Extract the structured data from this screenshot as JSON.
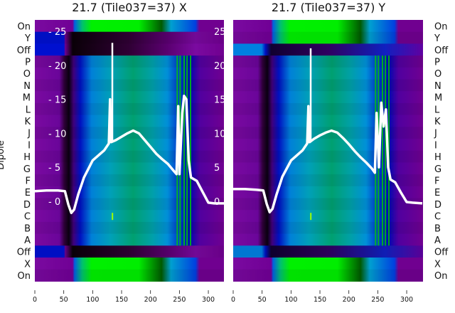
{
  "chart_data": {
    "type": "heatmap",
    "ylabel": "Dipole",
    "row_labels": [
      "On",
      "Y",
      "Off",
      "P",
      "O",
      "N",
      "M",
      "L",
      "K",
      "J",
      "I",
      "H",
      "G",
      "F",
      "E",
      "D",
      "C",
      "B",
      "A",
      "Off",
      "X",
      "On"
    ],
    "xlim": [
      0,
      327
    ],
    "x_ticks": [
      "0",
      "50",
      "100",
      "150",
      "200",
      "250",
      "300"
    ],
    "inner_y_ticks": [
      "0",
      "5",
      "10",
      "15",
      "20",
      "25"
    ],
    "inner_ylim": [
      -2.5,
      25.5
    ],
    "panels": [
      {
        "title": "21.7 (Tile037=37) X",
        "pol": "X",
        "curve": {
          "x": [
            0,
            20,
            40,
            52,
            58,
            63,
            68,
            75,
            85,
            100,
            120,
            128,
            130,
            132,
            140,
            150,
            160,
            170,
            180,
            190,
            200,
            210,
            220,
            230,
            240,
            245,
            248,
            250,
            255,
            258,
            262,
            266,
            270,
            280,
            290,
            300,
            310,
            327
          ],
          "y": [
            1.5,
            1.6,
            1.6,
            1.5,
            -0.5,
            -1.7,
            -1.2,
            1,
            3.5,
            6,
            7.5,
            8.5,
            15,
            8.7,
            9,
            9.5,
            10,
            10.4,
            10,
            9,
            8,
            7,
            6.2,
            5.5,
            4.5,
            4,
            14,
            4,
            13,
            15.5,
            15,
            6,
            3.5,
            3,
            1.4,
            -0.2,
            -0.3,
            -0.3
          ]
        },
        "spike": {
          "x": 134,
          "y": 23.3
        }
      },
      {
        "title": "21.7 (Tile037=37) Y",
        "pol": "Y",
        "curve": {
          "x": [
            0,
            20,
            40,
            52,
            58,
            63,
            68,
            75,
            85,
            100,
            120,
            128,
            130,
            132,
            140,
            150,
            160,
            170,
            180,
            190,
            200,
            210,
            220,
            230,
            240,
            245,
            248,
            252,
            256,
            260,
            264,
            268,
            272,
            280,
            290,
            300,
            310,
            327
          ],
          "y": [
            1.8,
            1.8,
            1.7,
            1.6,
            -0.4,
            -1.6,
            -1.1,
            1,
            3.6,
            6,
            7.5,
            8.5,
            14,
            8.7,
            9.2,
            9.7,
            10.1,
            10.4,
            10.1,
            9.3,
            8.4,
            7.4,
            6.5,
            5.7,
            4.8,
            4.2,
            13,
            5,
            14.5,
            11,
            13.5,
            5,
            3.2,
            2.8,
            1.3,
            -0.1,
            -0.2,
            -0.3
          ]
        },
        "spike": {
          "x": 134,
          "y": 22.5
        }
      }
    ]
  }
}
